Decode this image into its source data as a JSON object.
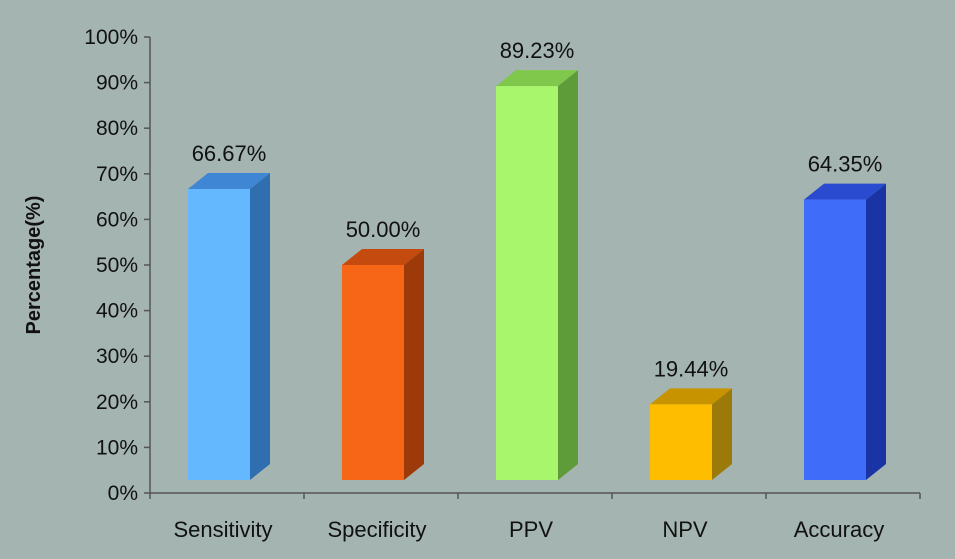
{
  "chart_data": {
    "type": "bar",
    "style": "3d-column",
    "categories": [
      "Sensitivity",
      "Specificity",
      "PPV",
      "NPV",
      "Accuracy"
    ],
    "values": [
      66.67,
      50.0,
      89.23,
      19.44,
      64.35
    ],
    "value_labels": [
      "66.67%",
      "50.00%",
      "89.23%",
      "19.44%",
      "64.35%"
    ],
    "ylabel": "Percentage(%)",
    "xlabel": "",
    "title": "",
    "ylim": [
      0,
      100
    ],
    "ytick_values": [
      0,
      10,
      20,
      30,
      40,
      50,
      60,
      70,
      80,
      90,
      100
    ],
    "ytick_labels": [
      "0%",
      "10%",
      "20%",
      "30%",
      "40%",
      "50%",
      "60%",
      "70%",
      "80%",
      "90%",
      "100%"
    ],
    "grid": false,
    "legend": "none",
    "colors": {
      "background": "#a4b4b0",
      "axis": "#555555",
      "bars": [
        {
          "front": "#64b8fe",
          "side": "#2f6fb0",
          "top": "#3f86d4"
        },
        {
          "front": "#f76517",
          "side": "#9c3a0a",
          "top": "#c54a10"
        },
        {
          "front": "#a8f66b",
          "side": "#5e9c3a",
          "top": "#7fc84c"
        },
        {
          "front": "#ffbd00",
          "side": "#9c7a0a",
          "top": "#c79400"
        },
        {
          "front": "#3f6cf9",
          "side": "#1a34a6",
          "top": "#2a4ad0"
        }
      ]
    }
  }
}
